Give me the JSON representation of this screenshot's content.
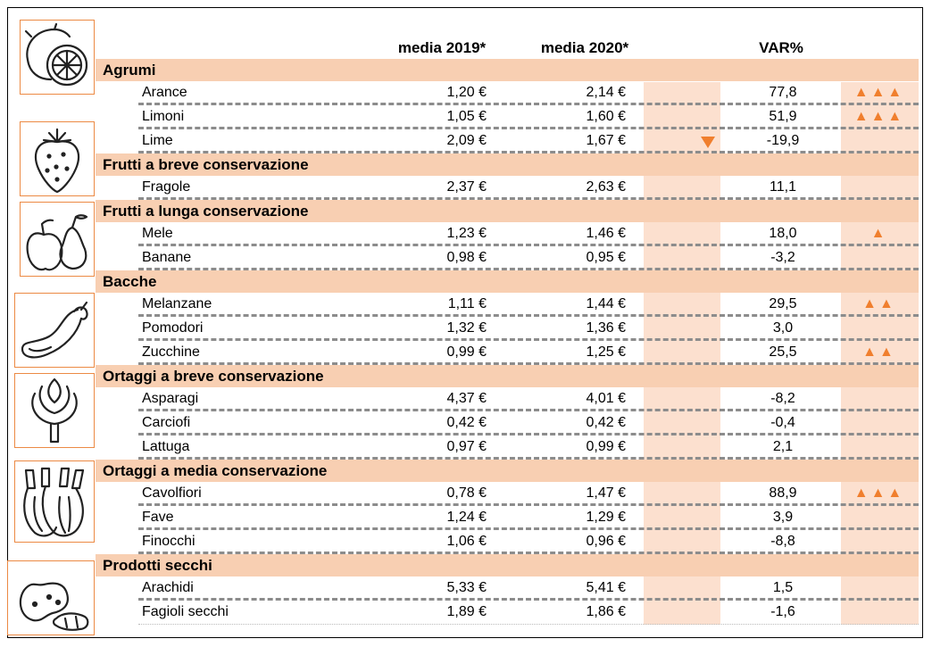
{
  "headers": {
    "col_2019": "media 2019*",
    "col_2020": "media 2020*",
    "col_var": "VAR%"
  },
  "colors": {
    "category_band": "#f8cfb2",
    "column_band": "#fce0cf",
    "arrow": "#f07f2e",
    "icon_border": "#ec8a44"
  },
  "icons": [
    "citrus-icon",
    "strawberry-icon",
    "apple-pear-icon",
    "eggplant-icon",
    "artichoke-icon",
    "fennel-icon",
    "peanut-icon"
  ],
  "categories": [
    {
      "name": "Agrumi",
      "items": [
        {
          "name": "Arance",
          "v2019": "1,20 €",
          "v2020": "2,14 €",
          "var": "77,8",
          "trend": "▲▲▲"
        },
        {
          "name": "Limoni",
          "v2019": "1,05 €",
          "v2020": "1,60 €",
          "var": "51,9",
          "trend": "▲▲▲"
        },
        {
          "name": "Lime",
          "v2019": "2,09 €",
          "v2020": "1,67 €",
          "var": "-19,9",
          "trend": "▼"
        }
      ]
    },
    {
      "name": "Frutti a breve conservazione",
      "items": [
        {
          "name": "Fragole",
          "v2019": "2,37 €",
          "v2020": "2,63 €",
          "var": "11,1",
          "trend": ""
        }
      ]
    },
    {
      "name": "Frutti a lunga conservazione",
      "items": [
        {
          "name": "Mele",
          "v2019": "1,23 €",
          "v2020": "1,46 €",
          "var": "18,0",
          "trend": "▲"
        },
        {
          "name": "Banane",
          "v2019": "0,98 €",
          "v2020": "0,95 €",
          "var": "-3,2",
          "trend": ""
        }
      ]
    },
    {
      "name": "Bacche",
      "items": [
        {
          "name": "Melanzane",
          "v2019": "1,11 €",
          "v2020": "1,44 €",
          "var": "29,5",
          "trend": "▲▲"
        },
        {
          "name": "Pomodori",
          "v2019": "1,32 €",
          "v2020": "1,36 €",
          "var": "3,0",
          "trend": ""
        },
        {
          "name": "Zucchine",
          "v2019": "0,99 €",
          "v2020": "1,25 €",
          "var": "25,5",
          "trend": "▲▲"
        }
      ]
    },
    {
      "name": "Ortaggi a breve conservazione",
      "items": [
        {
          "name": "Asparagi",
          "v2019": "4,37 €",
          "v2020": "4,01 €",
          "var": "-8,2",
          "trend": ""
        },
        {
          "name": "Carciofi",
          "v2019": "0,42 €",
          "v2020": "0,42 €",
          "var": "-0,4",
          "trend": ""
        },
        {
          "name": "Lattuga",
          "v2019": "0,97 €",
          "v2020": "0,99 €",
          "var": "2,1",
          "trend": ""
        }
      ]
    },
    {
      "name": "Ortaggi a media conservazione",
      "items": [
        {
          "name": "Cavolfiori",
          "v2019": "0,78 €",
          "v2020": "1,47 €",
          "var": "88,9",
          "trend": "▲▲▲"
        },
        {
          "name": "Fave",
          "v2019": "1,24 €",
          "v2020": "1,29 €",
          "var": "3,9",
          "trend": ""
        },
        {
          "name": "Finocchi",
          "v2019": "1,06 €",
          "v2020": "0,96 €",
          "var": "-8,8",
          "trend": ""
        }
      ]
    },
    {
      "name": "Prodotti secchi",
      "items": [
        {
          "name": "Arachidi",
          "v2019": "5,33 €",
          "v2020": "5,41 €",
          "var": "1,5",
          "trend": ""
        },
        {
          "name": "Fagioli secchi",
          "v2019": "1,89 €",
          "v2020": "1,86 €",
          "var": "-1,6",
          "trend": ""
        }
      ]
    }
  ]
}
